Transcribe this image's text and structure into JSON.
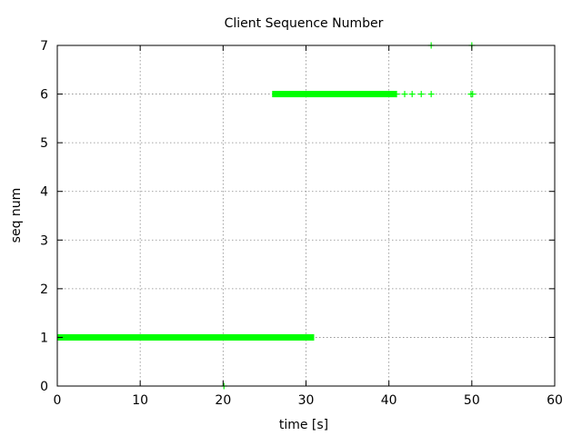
{
  "chart_data": {
    "type": "scatter",
    "title": "Client Sequence Number",
    "xlabel": "time [s]",
    "ylabel": "seq num",
    "xlim": [
      0,
      60
    ],
    "ylim": [
      0,
      7
    ],
    "xticks": [
      0,
      10,
      20,
      30,
      40,
      50,
      60
    ],
    "yticks": [
      0,
      1,
      2,
      3,
      4,
      5,
      6,
      7
    ],
    "grid": true,
    "grid_style": "dotted",
    "legend": "none",
    "marker": "plus",
    "series": [
      {
        "color": "#00ff00",
        "dense_runs": [
          {
            "x_start": 0.4,
            "x_end": 30.6,
            "y": 1
          },
          {
            "x_start": 26.3,
            "x_end": 40.6,
            "y": 6
          }
        ],
        "points": [
          {
            "x": 20.1,
            "y": 0
          },
          {
            "x": 40.9,
            "y": 6
          },
          {
            "x": 41.9,
            "y": 6
          },
          {
            "x": 42.8,
            "y": 6
          },
          {
            "x": 43.9,
            "y": 6
          },
          {
            "x": 45.1,
            "y": 6
          },
          {
            "x": 49.9,
            "y": 6
          },
          {
            "x": 50.1,
            "y": 6
          },
          {
            "x": 45.1,
            "y": 7
          },
          {
            "x": 50.0,
            "y": 7
          }
        ]
      }
    ]
  }
}
